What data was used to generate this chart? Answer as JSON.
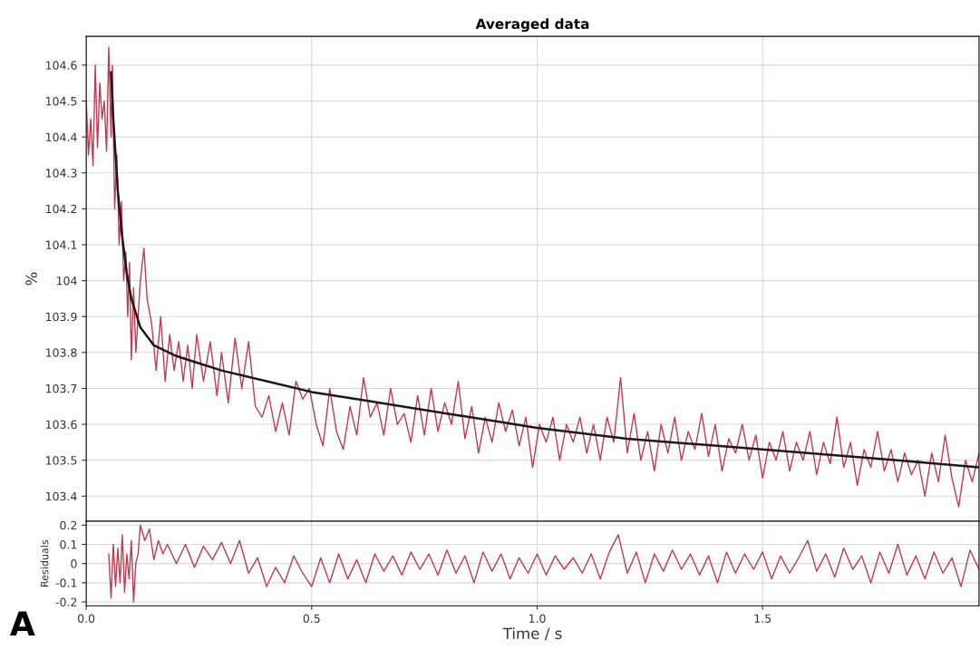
{
  "chart_data": [
    {
      "type": "line",
      "title": "Averaged data",
      "ylabel": "%",
      "grid": true,
      "tick_labels": "y",
      "xlim": [
        0,
        1.98
      ],
      "xticks": [
        {
          "value": 0,
          "label": null
        },
        {
          "value": 0.5,
          "label": null
        },
        {
          "value": 1,
          "label": null
        },
        {
          "value": 1.5,
          "label": null
        }
      ],
      "ylim": [
        103.33,
        104.68
      ],
      "yticks": [
        103.4,
        103.5,
        103.6,
        103.7,
        103.8,
        103.9,
        104,
        104.1,
        104.2,
        104.3,
        104.4,
        104.5,
        104.6
      ],
      "series": [
        {
          "color": "#c23a52",
          "x": [
            0.0,
            0.005,
            0.01,
            0.015,
            0.02,
            0.025,
            0.03,
            0.035,
            0.04,
            0.045,
            0.05,
            0.055,
            0.058,
            0.063,
            0.068,
            0.073,
            0.078,
            0.083,
            0.088,
            0.092,
            0.096,
            0.1,
            0.105,
            0.11,
            0.115,
            0.12,
            0.128,
            0.135,
            0.145,
            0.155,
            0.165,
            0.175,
            0.185,
            0.195,
            0.205,
            0.215,
            0.225,
            0.235,
            0.245,
            0.26,
            0.275,
            0.29,
            0.3,
            0.315,
            0.33,
            0.345,
            0.36,
            0.375,
            0.39,
            0.405,
            0.42,
            0.435,
            0.45,
            0.465,
            0.48,
            0.495,
            0.51,
            0.525,
            0.54,
            0.555,
            0.57,
            0.585,
            0.6,
            0.615,
            0.63,
            0.645,
            0.66,
            0.675,
            0.69,
            0.705,
            0.72,
            0.735,
            0.75,
            0.765,
            0.78,
            0.795,
            0.81,
            0.825,
            0.84,
            0.855,
            0.87,
            0.885,
            0.9,
            0.915,
            0.93,
            0.945,
            0.96,
            0.975,
            0.99,
            1.005,
            1.02,
            1.035,
            1.05,
            1.065,
            1.08,
            1.095,
            1.11,
            1.125,
            1.14,
            1.155,
            1.17,
            1.185,
            1.2,
            1.215,
            1.23,
            1.245,
            1.26,
            1.275,
            1.29,
            1.305,
            1.32,
            1.335,
            1.35,
            1.365,
            1.38,
            1.395,
            1.41,
            1.425,
            1.44,
            1.455,
            1.47,
            1.485,
            1.5,
            1.515,
            1.53,
            1.545,
            1.56,
            1.575,
            1.59,
            1.605,
            1.62,
            1.635,
            1.65,
            1.665,
            1.68,
            1.695,
            1.71,
            1.725,
            1.74,
            1.755,
            1.77,
            1.785,
            1.8,
            1.815,
            1.83,
            1.845,
            1.86,
            1.875,
            1.89,
            1.905,
            1.92,
            1.935,
            1.95,
            1.965,
            1.98
          ],
          "values": [
            104.5,
            104.35,
            104.45,
            104.32,
            104.6,
            104.37,
            104.55,
            104.45,
            104.5,
            104.36,
            104.65,
            104.4,
            104.6,
            104.2,
            104.35,
            104.1,
            104.22,
            104.0,
            104.08,
            103.9,
            104.05,
            103.78,
            103.98,
            103.8,
            103.9,
            104.0,
            104.09,
            103.95,
            103.88,
            103.75,
            103.9,
            103.72,
            103.85,
            103.75,
            103.83,
            103.72,
            103.82,
            103.7,
            103.85,
            103.72,
            103.83,
            103.68,
            103.8,
            103.66,
            103.84,
            103.7,
            103.83,
            103.65,
            103.62,
            103.68,
            103.58,
            103.66,
            103.57,
            103.72,
            103.67,
            103.7,
            103.6,
            103.54,
            103.7,
            103.58,
            103.53,
            103.65,
            103.57,
            103.73,
            103.62,
            103.66,
            103.57,
            103.7,
            103.6,
            103.63,
            103.55,
            103.68,
            103.57,
            103.7,
            103.58,
            103.66,
            103.6,
            103.72,
            103.56,
            103.65,
            103.52,
            103.62,
            103.55,
            103.66,
            103.58,
            103.64,
            103.54,
            103.62,
            103.48,
            103.6,
            103.55,
            103.62,
            103.5,
            103.6,
            103.55,
            103.62,
            103.52,
            103.6,
            103.5,
            103.62,
            103.55,
            103.73,
            103.52,
            103.63,
            103.5,
            103.58,
            103.47,
            103.6,
            103.52,
            103.62,
            103.5,
            103.58,
            103.53,
            103.63,
            103.51,
            103.6,
            103.47,
            103.56,
            103.52,
            103.6,
            103.5,
            103.57,
            103.45,
            103.55,
            103.5,
            103.58,
            103.47,
            103.55,
            103.5,
            103.58,
            103.46,
            103.55,
            103.49,
            103.62,
            103.48,
            103.55,
            103.43,
            103.53,
            103.48,
            103.58,
            103.47,
            103.53,
            103.44,
            103.52,
            103.46,
            103.5,
            103.4,
            103.52,
            103.44,
            103.57,
            103.45,
            103.37,
            103.5,
            103.44,
            103.52
          ]
        },
        {
          "color": "#1a1a1a",
          "x": [
            0.055,
            0.06,
            0.07,
            0.08,
            0.09,
            0.1,
            0.12,
            0.15,
            0.2,
            0.25,
            0.3,
            0.4,
            0.5,
            0.6,
            0.7,
            0.8,
            0.9,
            1.0,
            1.2,
            1.4,
            1.6,
            1.8,
            1.98
          ],
          "values": [
            104.58,
            104.45,
            104.25,
            104.12,
            104.02,
            103.95,
            103.87,
            103.82,
            103.79,
            103.77,
            103.75,
            103.72,
            103.69,
            103.67,
            103.65,
            103.63,
            103.61,
            103.59,
            103.56,
            103.54,
            103.52,
            103.5,
            103.48
          ]
        }
      ]
    },
    {
      "type": "line",
      "xlabel": "Time / s",
      "ylabel": "Residuals",
      "grid": true,
      "xlim": [
        0,
        1.98
      ],
      "xticks": [
        {
          "value": 0,
          "label": "0.0"
        },
        0.5,
        {
          "value": 1,
          "label": "1.0"
        },
        1.5
      ],
      "ylim": [
        -0.22,
        0.22
      ],
      "yticks": [
        -0.2,
        -0.1,
        0,
        0.1,
        0.2
      ],
      "annotations": [
        "A"
      ],
      "series": [
        {
          "color": "#c23a52",
          "x": [
            0.05,
            0.055,
            0.06,
            0.065,
            0.07,
            0.075,
            0.08,
            0.085,
            0.09,
            0.095,
            0.1,
            0.105,
            0.11,
            0.115,
            0.12,
            0.13,
            0.14,
            0.15,
            0.16,
            0.17,
            0.18,
            0.2,
            0.22,
            0.24,
            0.26,
            0.28,
            0.3,
            0.32,
            0.34,
            0.36,
            0.38,
            0.4,
            0.42,
            0.44,
            0.46,
            0.48,
            0.5,
            0.52,
            0.54,
            0.56,
            0.58,
            0.6,
            0.62,
            0.64,
            0.66,
            0.68,
            0.7,
            0.72,
            0.74,
            0.76,
            0.78,
            0.8,
            0.82,
            0.84,
            0.86,
            0.88,
            0.9,
            0.92,
            0.94,
            0.96,
            0.98,
            1.0,
            1.02,
            1.04,
            1.06,
            1.08,
            1.1,
            1.12,
            1.14,
            1.16,
            1.18,
            1.2,
            1.22,
            1.24,
            1.26,
            1.28,
            1.3,
            1.32,
            1.34,
            1.36,
            1.38,
            1.4,
            1.42,
            1.44,
            1.46,
            1.48,
            1.5,
            1.52,
            1.54,
            1.56,
            1.58,
            1.6,
            1.62,
            1.64,
            1.66,
            1.68,
            1.7,
            1.72,
            1.74,
            1.76,
            1.78,
            1.8,
            1.82,
            1.84,
            1.86,
            1.88,
            1.9,
            1.92,
            1.94,
            1.96,
            1.98
          ],
          "values": [
            0.05,
            -0.18,
            0.1,
            -0.12,
            0.08,
            -0.1,
            0.15,
            -0.15,
            0.05,
            -0.08,
            0.12,
            -0.2,
            0.0,
            0.05,
            0.2,
            0.12,
            0.18,
            0.02,
            0.12,
            0.05,
            0.1,
            0.0,
            0.1,
            -0.02,
            0.09,
            0.02,
            0.11,
            0.0,
            0.12,
            -0.05,
            0.03,
            -0.12,
            -0.02,
            -0.1,
            0.04,
            -0.05,
            -0.12,
            0.03,
            -0.1,
            0.05,
            -0.08,
            0.02,
            -0.1,
            0.05,
            -0.04,
            0.04,
            -0.06,
            0.06,
            -0.03,
            0.05,
            -0.06,
            0.07,
            -0.05,
            0.04,
            -0.1,
            0.06,
            -0.04,
            0.05,
            -0.08,
            0.03,
            -0.05,
            0.05,
            -0.06,
            0.04,
            -0.03,
            0.03,
            -0.05,
            0.05,
            -0.08,
            0.06,
            0.15,
            -0.05,
            0.06,
            -0.1,
            0.05,
            -0.04,
            0.07,
            -0.03,
            0.05,
            -0.06,
            0.04,
            -0.1,
            0.06,
            -0.05,
            0.05,
            -0.03,
            0.06,
            -0.08,
            0.04,
            -0.05,
            0.03,
            0.12,
            -0.04,
            0.05,
            -0.07,
            0.08,
            -0.03,
            0.04,
            -0.1,
            0.06,
            -0.05,
            0.1,
            -0.06,
            0.04,
            -0.08,
            0.06,
            -0.05,
            0.03,
            -0.12,
            0.07,
            -0.03
          ]
        }
      ]
    }
  ]
}
